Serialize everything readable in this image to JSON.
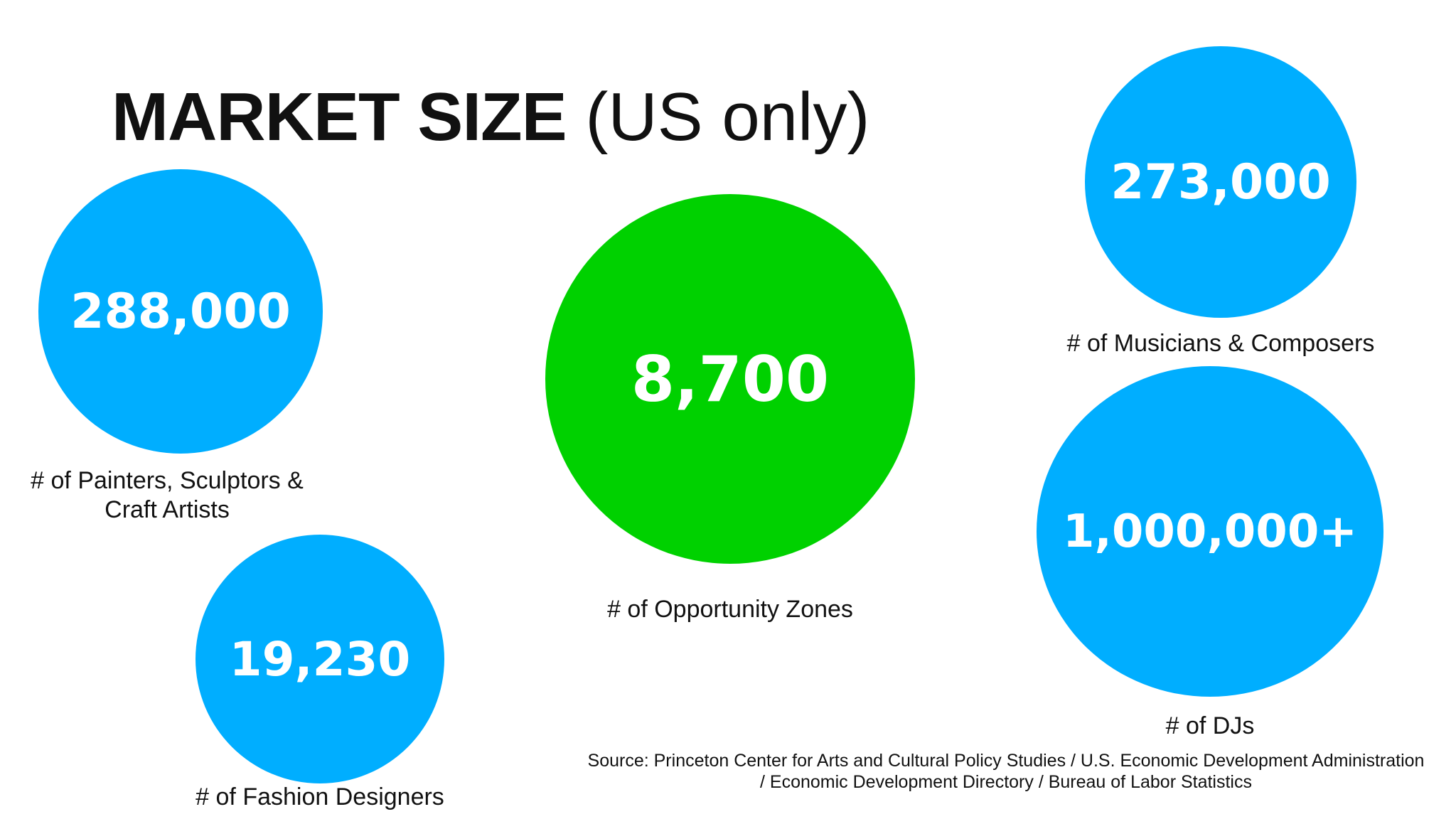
{
  "title": {
    "bold": "MARKET SIZE",
    "light": "(US only)"
  },
  "colors": {
    "blue": "#00AEFF",
    "green": "#00D100",
    "text": "#111111",
    "number_text": "#FFFFFF"
  },
  "stats": {
    "painters": {
      "value": "288,000",
      "label_line1": "# of Painters, Sculptors &",
      "label_line2": "Craft Artists"
    },
    "fashion": {
      "value": "19,230",
      "label": "# of Fashion Designers"
    },
    "opportunity": {
      "value": "8,700",
      "label": "# of Opportunity Zones"
    },
    "musicians": {
      "value": "273,000",
      "label": "# of Musicians & Composers"
    },
    "djs": {
      "value": "1,000,000+",
      "label": "# of DJs"
    }
  },
  "source": {
    "line1": "Source: Princeton Center for Arts and Cultural Policy Studies / U.S. Economic Development Administration",
    "line2": "/ Economic Development Directory / Bureau of Labor Statistics"
  }
}
